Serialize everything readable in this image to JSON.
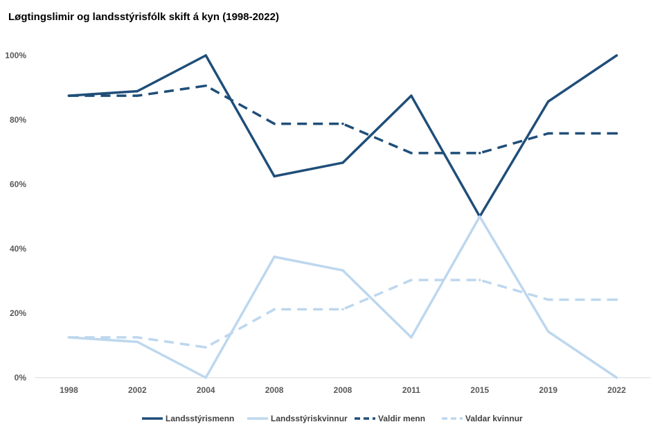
{
  "chart_data": {
    "type": "line",
    "title": "Løgtingslimir og landsstýrisfólk skift á kyn (1998-2022)",
    "categories": [
      "1998",
      "2002",
      "2004",
      "2008",
      "2008",
      "2011",
      "2015",
      "2019",
      "2022"
    ],
    "y_tick_labels": [
      "0%",
      "20%",
      "40%",
      "60%",
      "80%",
      "100%"
    ],
    "ylim": [
      0,
      100
    ],
    "grid": false,
    "legend_position": "bottom",
    "series": [
      {
        "name": "Landsstýrismenn",
        "values": [
          87.5,
          88.9,
          100,
          62.5,
          66.7,
          87.5,
          50,
          85.7,
          100
        ],
        "color": "#1f4e79",
        "dashed": false
      },
      {
        "name": "Landsstýriskvinnur",
        "values": [
          12.5,
          11.1,
          0,
          37.5,
          33.3,
          12.5,
          50,
          14.3,
          0
        ],
        "color": "#bdd7ee",
        "dashed": false
      },
      {
        "name": "Valdir menn",
        "values": [
          87.5,
          87.5,
          90.6,
          78.8,
          78.8,
          69.7,
          69.7,
          75.8,
          75.8
        ],
        "color": "#1f4e79",
        "dashed": true
      },
      {
        "name": "Valdar kvinnur",
        "values": [
          12.5,
          12.5,
          9.4,
          21.2,
          21.2,
          30.3,
          30.3,
          24.2,
          24.2
        ],
        "color": "#bdd7ee",
        "dashed": true
      }
    ]
  }
}
